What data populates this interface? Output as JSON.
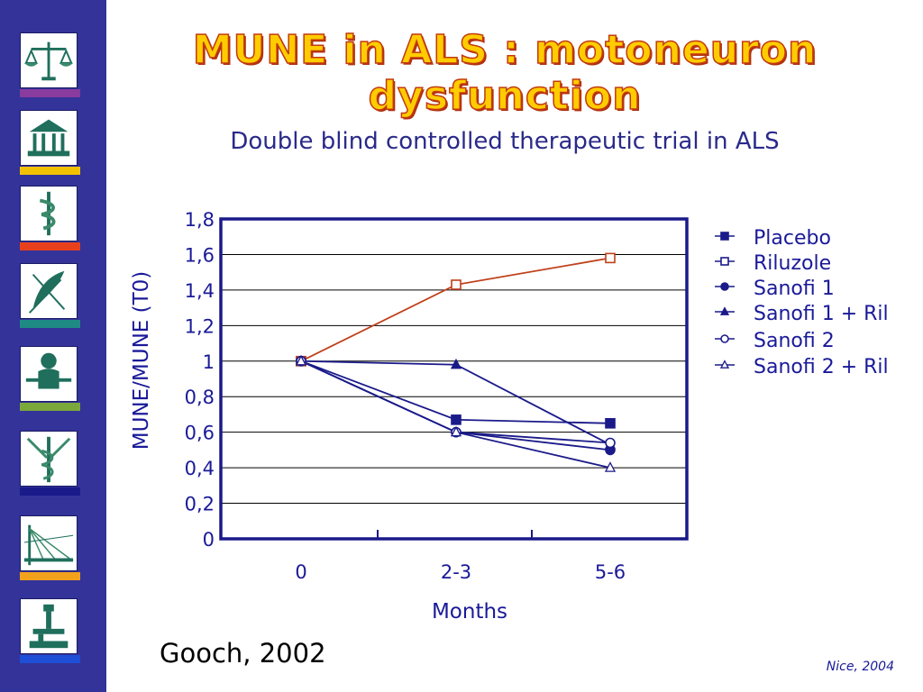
{
  "slide": {
    "title": "MUNE in ALS : motoneuron dysfunction",
    "subtitle": "Double blind controlled therapeutic trial in ALS",
    "citation": "Gooch, 2002",
    "footer": "Nice, 2004"
  },
  "sidebar": {
    "tiles": [
      {
        "icon": "scales-icon",
        "bar_color": "#8a3b9e"
      },
      {
        "icon": "temple-icon",
        "bar_color": "#f2c200"
      },
      {
        "icon": "caduceus-icon",
        "bar_color": "#e8401c"
      },
      {
        "icon": "quill-icon",
        "bar_color": "#1f8a84"
      },
      {
        "icon": "figure-icon",
        "bar_color": "#7aa83a"
      },
      {
        "icon": "caduceus-wings-icon",
        "bar_color": "#1a1a8a"
      },
      {
        "icon": "bridge-icon",
        "bar_color": "#f2a11c"
      },
      {
        "icon": "microscope-icon",
        "bar_color": "#1e4fd6"
      }
    ]
  },
  "chart_data": {
    "type": "line",
    "categories": [
      "0",
      "2-3",
      "5-6"
    ],
    "xlabel": "Months",
    "ylabel": "MUNE/MUNE (T0)",
    "ylim": [
      0,
      1.8
    ],
    "yticks": [
      "0",
      "0,2",
      "0,4",
      "0,6",
      "0,8",
      "1",
      "1,2",
      "1,4",
      "1,6",
      "1,8"
    ],
    "grid": true,
    "legend_position": "right",
    "series": [
      {
        "name": "Placebo",
        "marker": "filled-square",
        "color": "#1a1a8a",
        "values": [
          1,
          0.67,
          0.65
        ]
      },
      {
        "name": "Riluzole",
        "marker": "open-square",
        "color": "#c0401a",
        "values": [
          1,
          1.43,
          1.58
        ]
      },
      {
        "name": "Sanofi 1",
        "marker": "filled-circle",
        "color": "#1a1a8a",
        "values": [
          1,
          0.6,
          0.5
        ]
      },
      {
        "name": "Sanofi 1 + Ril",
        "marker": "filled-triangle",
        "color": "#1a1a8a",
        "values": [
          1,
          0.98,
          0.53
        ]
      },
      {
        "name": "Sanofi 2",
        "marker": "open-circle",
        "color": "#1a1a8a",
        "values": [
          1,
          0.6,
          0.54
        ]
      },
      {
        "name": "Sanofi 2 + Ril",
        "marker": "open-triangle",
        "color": "#1a1a8a",
        "values": [
          1,
          0.6,
          0.4
        ]
      }
    ]
  }
}
